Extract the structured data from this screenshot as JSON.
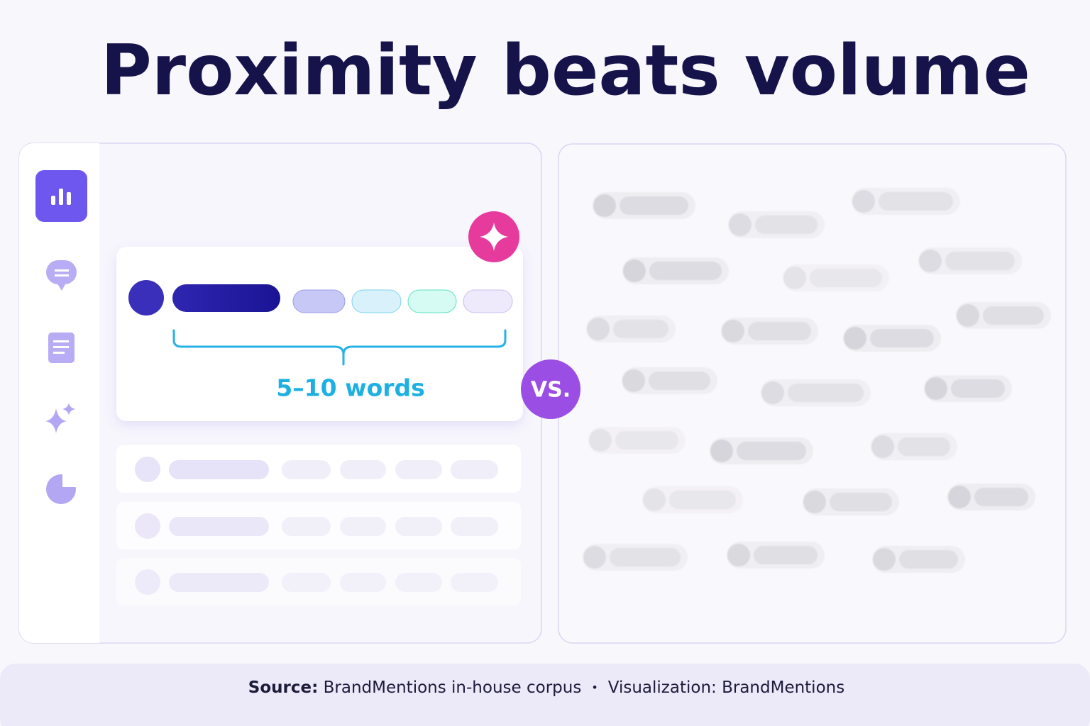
{
  "header": {
    "title": "Proximity beats volume"
  },
  "left_panel": {
    "highlight": {
      "label": "5–10 words"
    }
  },
  "badge": {
    "label": "VS."
  },
  "footer": {
    "source_label": "Source:",
    "source": "BrandMentions in-house corpus",
    "separator": "•",
    "credit": "Visualization: BrandMentions"
  }
}
